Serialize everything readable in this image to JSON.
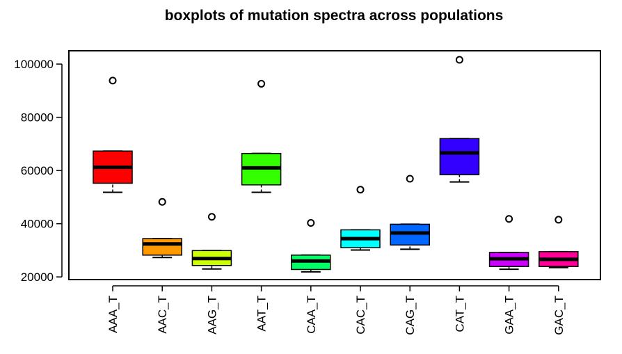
{
  "chart_data": {
    "type": "boxplot",
    "title": "boxplots of mutation spectra across populations",
    "xlabel": "",
    "ylabel": "",
    "ylim": [
      19000,
      105000
    ],
    "yticks": [
      20000,
      40000,
      60000,
      80000,
      100000
    ],
    "ytick_labels": [
      "20000",
      "40000",
      "60000",
      "80000",
      "100000"
    ],
    "categories": [
      "AAA_T",
      "AAC_T",
      "AAG_T",
      "AAT_T",
      "CAA_T",
      "CAC_T",
      "CAG_T",
      "CAT_T",
      "GAA_T",
      "GAC_T"
    ],
    "boxes": [
      {
        "category": "AAA_T",
        "color": "#ff0000",
        "whisker_low": 51800,
        "q1": 55200,
        "median": 61200,
        "q3": 67300,
        "whisker_high": 67300,
        "outliers": [
          93800
        ]
      },
      {
        "category": "AAC_T",
        "color": "#ff9900",
        "whisker_low": 27300,
        "q1": 28200,
        "median": 32400,
        "q3": 34400,
        "whisker_high": 34400,
        "outliers": [
          48200
        ]
      },
      {
        "category": "AAG_T",
        "color": "#ccff00",
        "whisker_low": 23000,
        "q1": 24300,
        "median": 26900,
        "q3": 29900,
        "whisker_high": 29900,
        "outliers": [
          42600
        ]
      },
      {
        "category": "AAT_T",
        "color": "#33ff00",
        "whisker_low": 51800,
        "q1": 54600,
        "median": 61000,
        "q3": 66400,
        "whisker_high": 66400,
        "outliers": [
          92600
        ]
      },
      {
        "category": "CAA_T",
        "color": "#00ff66",
        "whisker_low": 21900,
        "q1": 22800,
        "median": 26000,
        "q3": 28200,
        "whisker_high": 28200,
        "outliers": [
          40300
        ]
      },
      {
        "category": "CAC_T",
        "color": "#00ffff",
        "whisker_low": 30100,
        "q1": 31000,
        "median": 34400,
        "q3": 37700,
        "whisker_high": 37700,
        "outliers": [
          52800
        ]
      },
      {
        "category": "CAG_T",
        "color": "#0066ff",
        "whisker_low": 30400,
        "q1": 32000,
        "median": 36500,
        "q3": 39800,
        "whisker_high": 39800,
        "outliers": [
          56900
        ]
      },
      {
        "category": "CAT_T",
        "color": "#3300ff",
        "whisker_low": 55700,
        "q1": 58400,
        "median": 66600,
        "q3": 72000,
        "whisker_high": 72000,
        "outliers": [
          101600
        ]
      },
      {
        "category": "GAA_T",
        "color": "#cc00ff",
        "whisker_low": 22900,
        "q1": 23900,
        "median": 26800,
        "q3": 29200,
        "whisker_high": 29200,
        "outliers": [
          41800
        ]
      },
      {
        "category": "GAC_T",
        "color": "#ff0099",
        "whisker_low": 23500,
        "q1": 23900,
        "median": 26600,
        "q3": 29500,
        "whisker_high": 29500,
        "outliers": [
          41500
        ]
      }
    ],
    "grid": false,
    "legend": "none"
  }
}
